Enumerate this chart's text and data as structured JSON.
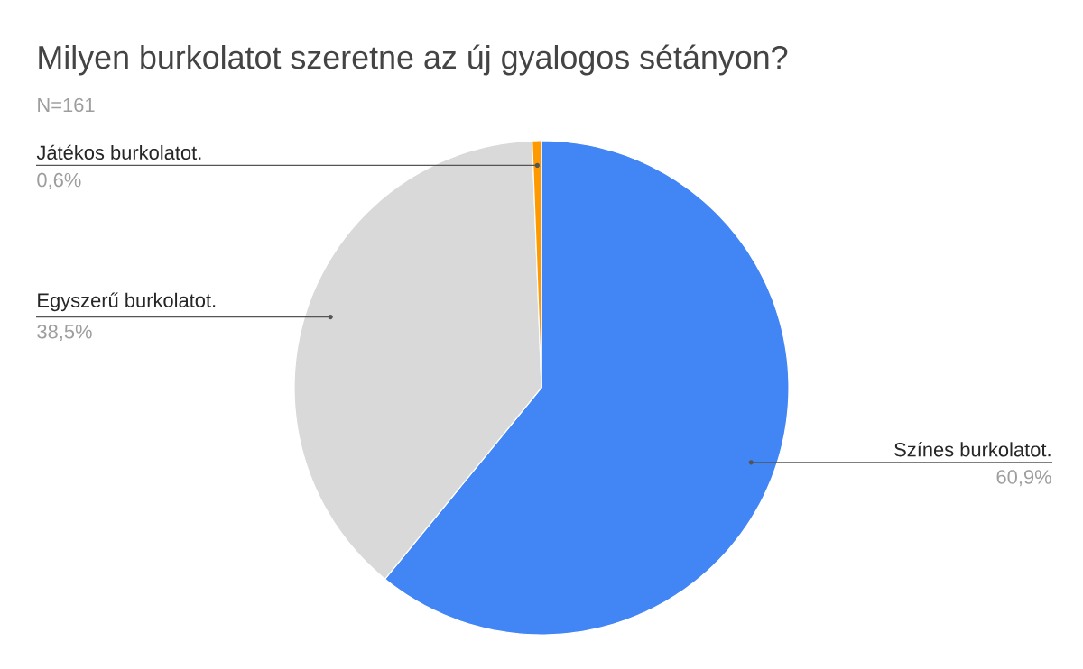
{
  "chart_data": {
    "type": "pie",
    "title": "Milyen burkolatot szeretne az új gyalogos sétányon?",
    "subtitle": "N=161",
    "categories": [
      "Színes burkolatot.",
      "Egyszerű burkolatot.",
      "Játékos burkolatot."
    ],
    "values": [
      60.9,
      38.5,
      0.6
    ],
    "colors": [
      "#4285f4",
      "#d9d9d9",
      "#ff9900"
    ],
    "value_labels": [
      "60,9%",
      "38,5%",
      "0,6%"
    ]
  }
}
